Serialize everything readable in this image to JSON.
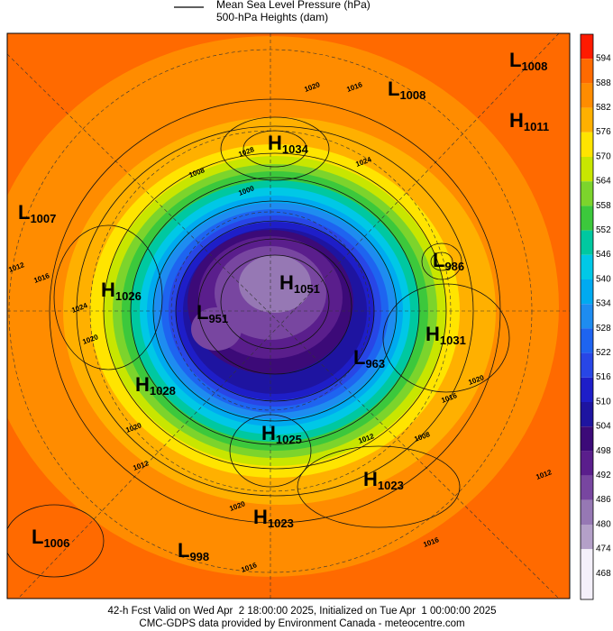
{
  "legend": {
    "items": [
      "Mean Sea Level Pressure (hPa)",
      "500-hPa Heights (dam)"
    ]
  },
  "colorbar": {
    "levels": [
      {
        "value": 594,
        "color": "#ff1a00"
      },
      {
        "value": 588,
        "color": "#ff6a00"
      },
      {
        "value": 582,
        "color": "#ff8c00"
      },
      {
        "value": 576,
        "color": "#ffb000"
      },
      {
        "value": 570,
        "color": "#ffe400"
      },
      {
        "value": 564,
        "color": "#c8e600"
      },
      {
        "value": 558,
        "color": "#7cd42c"
      },
      {
        "value": 552,
        "color": "#3cc83c"
      },
      {
        "value": 546,
        "color": "#00c8a0"
      },
      {
        "value": 540,
        "color": "#00c8e6"
      },
      {
        "value": 534,
        "color": "#00aaf0"
      },
      {
        "value": 528,
        "color": "#1e8cf0"
      },
      {
        "value": 522,
        "color": "#1e64f0"
      },
      {
        "value": 516,
        "color": "#2846e6"
      },
      {
        "value": 510,
        "color": "#1e1ec8"
      },
      {
        "value": 504,
        "color": "#1e14a0"
      },
      {
        "value": 498,
        "color": "#3c0a78"
      },
      {
        "value": 492,
        "color": "#5a1e8c"
      },
      {
        "value": 486,
        "color": "#7846a0"
      },
      {
        "value": 480,
        "color": "#9678b4"
      },
      {
        "value": 474,
        "color": "#b4a0c8"
      },
      {
        "value": 468,
        "color": "#f4f0fa"
      }
    ]
  },
  "centers": [
    {
      "kind": "L",
      "value": 1008
    },
    {
      "kind": "L",
      "value": 1008
    },
    {
      "kind": "H",
      "value": 1011
    },
    {
      "kind": "H",
      "value": 1034
    },
    {
      "kind": "L",
      "value": 1007
    },
    {
      "kind": "L",
      "value": 986
    },
    {
      "kind": "H",
      "value": 1026
    },
    {
      "kind": "H",
      "value": 1051
    },
    {
      "kind": "L",
      "value": 951
    },
    {
      "kind": "H",
      "value": 1031
    },
    {
      "kind": "L",
      "value": 963
    },
    {
      "kind": "H",
      "value": 1028
    },
    {
      "kind": "H",
      "value": 1025
    },
    {
      "kind": "H",
      "value": 1023
    },
    {
      "kind": "H",
      "value": 1023
    },
    {
      "kind": "L",
      "value": 1006
    },
    {
      "kind": "L",
      "value": 998
    }
  ],
  "isobar_labels": [
    1020,
    1016,
    1028,
    1024,
    1008,
    1000,
    1012,
    1016,
    1024,
    1020,
    1020,
    1012,
    1020,
    1016,
    1012,
    1008,
    1012,
    1016,
    1016,
    1020
  ],
  "footer": [
    "42-h Fcst Valid on Wed Apr  2 18:00:00 2025, Initialized on Tue Apr  1 00:00:00 2025",
    "CMC-GDPS data provided by Environment Canada - meteocentre.com"
  ]
}
